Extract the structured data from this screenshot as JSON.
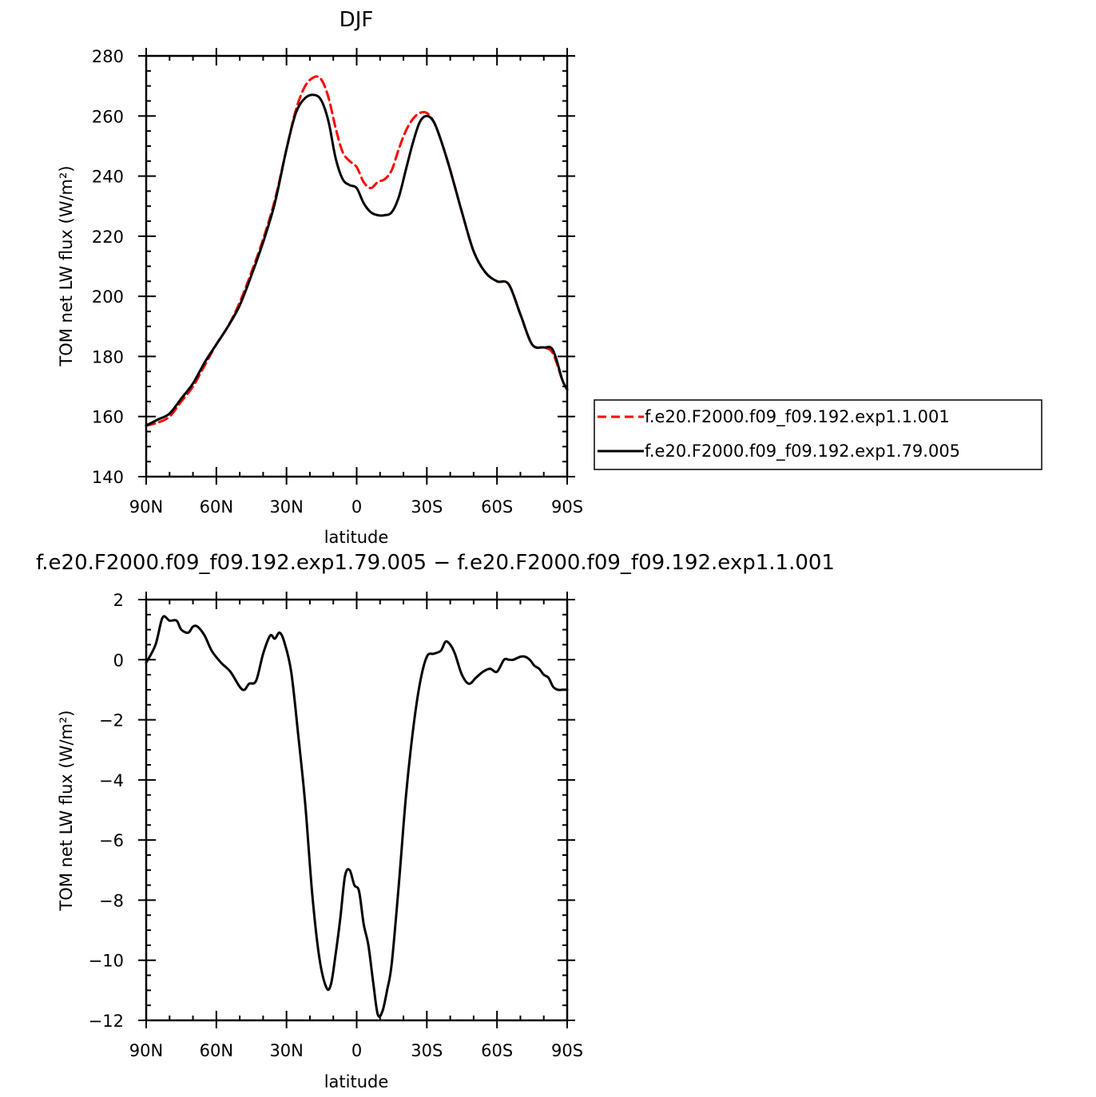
{
  "chart_data": [
    {
      "type": "line",
      "title": "DJF",
      "xlabel": "latitude",
      "ylabel": "TOM net LW flux (W/m²)",
      "xlim": [
        -90,
        90
      ],
      "ylim": [
        140,
        280
      ],
      "xticks": [
        {
          "value": -90,
          "label": "90N"
        },
        {
          "value": -60,
          "label": "60N"
        },
        {
          "value": -30,
          "label": "30N"
        },
        {
          "value": 0,
          "label": "0"
        },
        {
          "value": 30,
          "label": "30S"
        },
        {
          "value": 60,
          "label": "60S"
        },
        {
          "value": 90,
          "label": "90S"
        }
      ],
      "yticks": [
        140,
        160,
        180,
        200,
        220,
        240,
        260,
        280
      ],
      "legend_position": "right",
      "series": [
        {
          "name": "f.e20.F2000.f09_f09.192.exp1.1.001",
          "color": "#ff0000",
          "style": "dashed",
          "x": [
            -90,
            -85,
            -80,
            -75,
            -70,
            -65,
            -60,
            -55,
            -50,
            -45,
            -40,
            -35,
            -30,
            -26,
            -22,
            -18,
            -15,
            -12,
            -9,
            -6,
            -3,
            0,
            3,
            6,
            9,
            12,
            15,
            18,
            21,
            24,
            27,
            30,
            33,
            36,
            40,
            45,
            50,
            55,
            60,
            65,
            70,
            75,
            80,
            83,
            85,
            88,
            90
          ],
          "y": [
            157,
            158,
            160,
            165,
            170,
            177,
            184,
            190,
            198,
            208,
            219,
            232,
            249,
            262,
            270,
            273,
            272,
            266,
            256,
            248,
            245,
            243,
            238,
            236,
            238,
            239,
            242,
            249,
            255,
            259,
            261,
            261,
            258,
            252,
            242,
            228,
            215,
            208,
            205,
            204,
            194,
            184,
            183,
            182,
            179,
            172,
            169
          ]
        },
        {
          "name": "f.e20.F2000.f09_f09.192.exp1.79.005",
          "color": "#000000",
          "style": "solid",
          "x": [
            -90,
            -85,
            -80,
            -75,
            -70,
            -65,
            -60,
            -55,
            -50,
            -45,
            -40,
            -35,
            -30,
            -26,
            -22,
            -18,
            -15,
            -12,
            -9,
            -6,
            -3,
            0,
            3,
            6,
            9,
            12,
            15,
            18,
            21,
            24,
            27,
            30,
            33,
            36,
            40,
            45,
            50,
            55,
            60,
            65,
            70,
            75,
            80,
            83,
            85,
            88,
            90
          ],
          "y": [
            157,
            159,
            161,
            166,
            171,
            178,
            184,
            190,
            197,
            207,
            218,
            231,
            249,
            261,
            266,
            267,
            265,
            258,
            246,
            239,
            237,
            236,
            231,
            228,
            227,
            227,
            228,
            233,
            242,
            251,
            258,
            260,
            258,
            252,
            242,
            228,
            215,
            208,
            205,
            204,
            194,
            184,
            183,
            183,
            180,
            172,
            169
          ]
        }
      ]
    },
    {
      "type": "line",
      "title": "f.e20.F2000.f09_f09.192.exp1.79.005 − f.e20.F2000.f09_f09.192.exp1.1.001",
      "xlabel": "latitude",
      "ylabel": "TOM net LW flux (W/m²)",
      "xlim": [
        -90,
        90
      ],
      "ylim": [
        -12,
        2
      ],
      "xticks": [
        {
          "value": -90,
          "label": "90N"
        },
        {
          "value": -60,
          "label": "60N"
        },
        {
          "value": -30,
          "label": "30N"
        },
        {
          "value": 0,
          "label": "0"
        },
        {
          "value": 30,
          "label": "30S"
        },
        {
          "value": 60,
          "label": "60S"
        },
        {
          "value": 90,
          "label": "90S"
        }
      ],
      "yticks": [
        {
          "value": 2,
          "label": "2"
        },
        {
          "value": 0,
          "label": "0"
        },
        {
          "value": -2,
          "label": "−2"
        },
        {
          "value": -4,
          "label": "−4"
        },
        {
          "value": -6,
          "label": "−6"
        },
        {
          "value": -8,
          "label": "−8"
        },
        {
          "value": -10,
          "label": "−10"
        },
        {
          "value": -12,
          "label": "−12"
        }
      ],
      "series": [
        {
          "color": "#000000",
          "style": "solid",
          "x": [
            -90,
            -86,
            -83,
            -80,
            -77,
            -75,
            -72,
            -70,
            -68,
            -65,
            -62,
            -58,
            -54,
            -50,
            -48,
            -46,
            -43,
            -40,
            -37,
            -35,
            -33,
            -31,
            -28,
            -25,
            -22,
            -19,
            -16,
            -13,
            -11,
            -9,
            -7,
            -5,
            -3,
            -1,
            1,
            3,
            5,
            7,
            9,
            11,
            13,
            15,
            18,
            21,
            24,
            27,
            30,
            33,
            36,
            38,
            40,
            42,
            45,
            48,
            51,
            54,
            57,
            60,
            63,
            65,
            67,
            70,
            72,
            74,
            76,
            78,
            80,
            82,
            84,
            86,
            88,
            90
          ],
          "y": [
            -0.1,
            0.5,
            1.4,
            1.3,
            1.3,
            1.0,
            0.9,
            1.1,
            1.1,
            0.8,
            0.3,
            -0.1,
            -0.4,
            -0.9,
            -1.0,
            -0.8,
            -0.7,
            0.2,
            0.8,
            0.7,
            0.9,
            0.6,
            -0.4,
            -2.5,
            -4.8,
            -7.8,
            -9.9,
            -10.9,
            -10.8,
            -9.8,
            -8.6,
            -7.2,
            -7.0,
            -7.5,
            -7.7,
            -8.8,
            -9.5,
            -10.7,
            -11.8,
            -11.7,
            -11.0,
            -10.1,
            -7.5,
            -4.6,
            -2.4,
            -0.8,
            0.1,
            0.2,
            0.3,
            0.6,
            0.5,
            0.2,
            -0.5,
            -0.8,
            -0.6,
            -0.4,
            -0.3,
            -0.4,
            0.0,
            0.0,
            0.0,
            0.1,
            0.1,
            0.0,
            -0.2,
            -0.3,
            -0.5,
            -0.6,
            -0.9,
            -1.0,
            -1.0,
            -1.0
          ]
        }
      ]
    }
  ]
}
